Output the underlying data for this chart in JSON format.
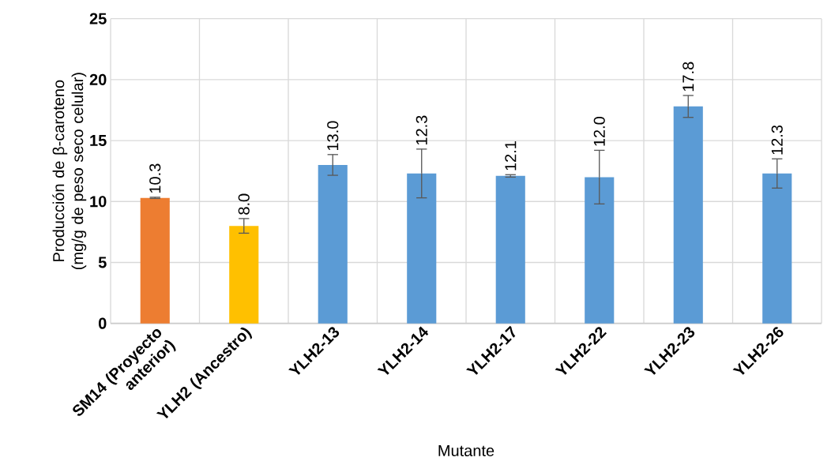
{
  "chart_data": {
    "type": "bar",
    "xlabel": "Mutante",
    "ylabel": "Producción de β-caroteno (mg/g de peso seco celular)",
    "categories": [
      "SM14 (Proyecto anterior)",
      "YLH2 (Ancestro)",
      "YLH2-13",
      "YLH2-14",
      "YLH2-17",
      "YLH2-22",
      "YLH2-23",
      "YLH2-26"
    ],
    "values": [
      10.3,
      8.0,
      13.0,
      12.3,
      12.1,
      12.0,
      17.8,
      12.3
    ],
    "colors": [
      "#ed7d31",
      "#ffc000",
      "#5b9bd5",
      "#5b9bd5",
      "#5b9bd5",
      "#5b9bd5",
      "#5b9bd5",
      "#5b9bd5"
    ],
    "errors": [
      0.05,
      0.6,
      0.85,
      2.0,
      0.1,
      2.2,
      0.9,
      1.2
    ],
    "value_labels": [
      "10.3",
      "8.0",
      "13.0",
      "12.3",
      "12.1",
      "12.0",
      "17.8",
      "12.3"
    ],
    "ylim": [
      0,
      25
    ],
    "yticks": [
      0,
      5,
      10,
      15,
      20,
      25
    ],
    "grid": true
  }
}
